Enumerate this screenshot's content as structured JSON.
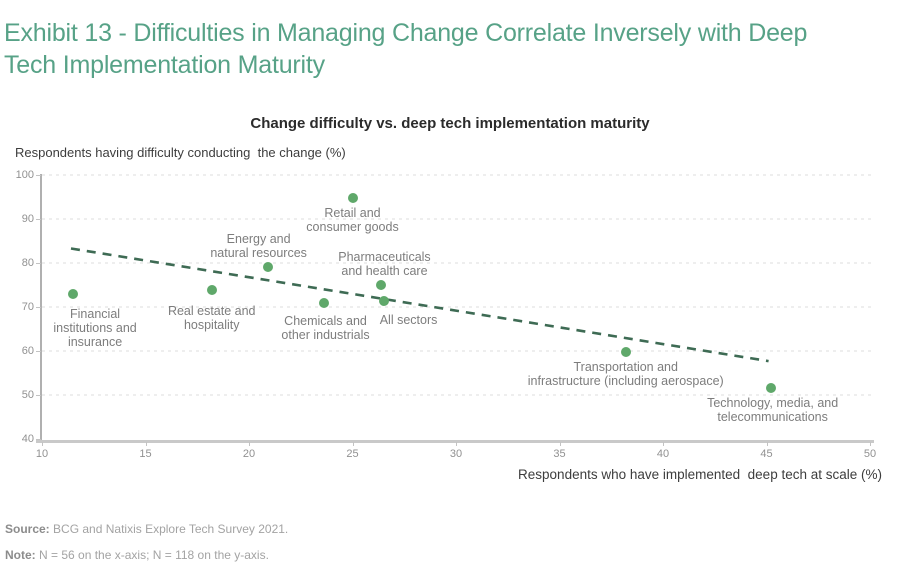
{
  "header": {
    "title_lines": [
      "Exhibit 13 - Difficulties in Managing Change Correlate Inversely with Deep",
      "Tech Implementation Maturity"
    ],
    "accent_color": "#57a287"
  },
  "chart_data": {
    "type": "scatter",
    "title": "Change difficulty vs. deep tech implementation maturity",
    "xlabel": "Respondents who have implemented  deep tech at scale (%)",
    "ylabel": "Respondents having difficulty conducting  the change (%)",
    "xlim": [
      10,
      50
    ],
    "ylim": [
      40,
      100
    ],
    "xticks": [
      10,
      15,
      20,
      25,
      30,
      35,
      40,
      45,
      50
    ],
    "yticks": [
      40,
      50,
      60,
      70,
      80,
      90,
      100
    ],
    "grid": "horizontal-dashed-light",
    "legend": "none",
    "point_color": "#5fa86a",
    "trend_color": "#3e6b54",
    "points": [
      {
        "name": "Financial institutions and insurance",
        "x": 11.5,
        "y": 73,
        "label_lines": [
          "Financial",
          "institutions and",
          "insurance"
        ],
        "side": "below",
        "dx": 22,
        "gap": 13
      },
      {
        "name": "Real estate and hospitality",
        "x": 18.2,
        "y": 73.8,
        "label_lines": [
          "Real estate and",
          "hospitality"
        ],
        "side": "below",
        "dx": 0,
        "gap": 14
      },
      {
        "name": "Energy and natural resources",
        "x": 20.9,
        "y": 79,
        "label_lines": [
          "Energy and",
          "natural resources"
        ],
        "side": "above",
        "dx": -9,
        "gap": 7
      },
      {
        "name": "Retail and consumer goods",
        "x": 25,
        "y": 94.8,
        "label_lines": [
          "Retail and",
          "consumer goods"
        ],
        "side": "below",
        "dx": 0,
        "gap": 8
      },
      {
        "name": "Chemicals and other industrials",
        "x": 23.6,
        "y": 71,
        "label_lines": [
          "Chemicals and",
          "other industrials"
        ],
        "side": "below",
        "dx": 2,
        "gap": 11
      },
      {
        "name": "Pharmaceuticals and health care",
        "x": 26.4,
        "y": 75,
        "label_lines": [
          "Pharmaceuticals",
          "and health care"
        ],
        "side": "above",
        "dx": 3,
        "gap": 7
      },
      {
        "name": "All sectors",
        "x": 26.5,
        "y": 71.3,
        "label_lines": [
          "All sectors"
        ],
        "side": "below",
        "dx": 25,
        "gap": 12
      },
      {
        "name": "Transportation and infrastructure (including aerospace)",
        "x": 38.2,
        "y": 59.8,
        "label_lines": [
          "Transportation and",
          "infrastructure (including aerospace)"
        ],
        "side": "below",
        "dx": 0,
        "gap": 8
      },
      {
        "name": "Technology, media, and telecommunications",
        "x": 45.2,
        "y": 51.5,
        "label_lines": [
          "Technology, media, and",
          "telecommunications"
        ],
        "side": "below",
        "dx": 2,
        "gap": 8
      }
    ],
    "trendline": {
      "x1": 11.4,
      "y1": 83.3,
      "x2": 45.1,
      "y2": 57.7,
      "style": "dashed"
    }
  },
  "footer": {
    "source_label": "Source:",
    "source_text": "BCG and Natixis Explore Tech Survey 2021.",
    "note_label": "Note:",
    "note_text": "N = 56 on the x-axis; N = 118 on the y-axis."
  }
}
